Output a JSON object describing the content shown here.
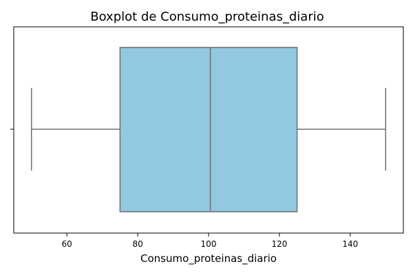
{
  "chart_data": {
    "type": "boxplot",
    "title": "Boxplot de Consumo_proteinas_diario",
    "xlabel": "Consumo_proteinas_diario",
    "ylabel": "",
    "xlim": [
      45.0,
      155.0
    ],
    "xticks": [
      60,
      80,
      100,
      120,
      140
    ],
    "grid": false,
    "box": {
      "whisker_low": 50,
      "q1": 75,
      "median": 100.5,
      "q3": 125,
      "whisker_high": 150
    },
    "colors": {
      "box_fill": "#92c8e0",
      "line": "#6e6e6e"
    }
  }
}
